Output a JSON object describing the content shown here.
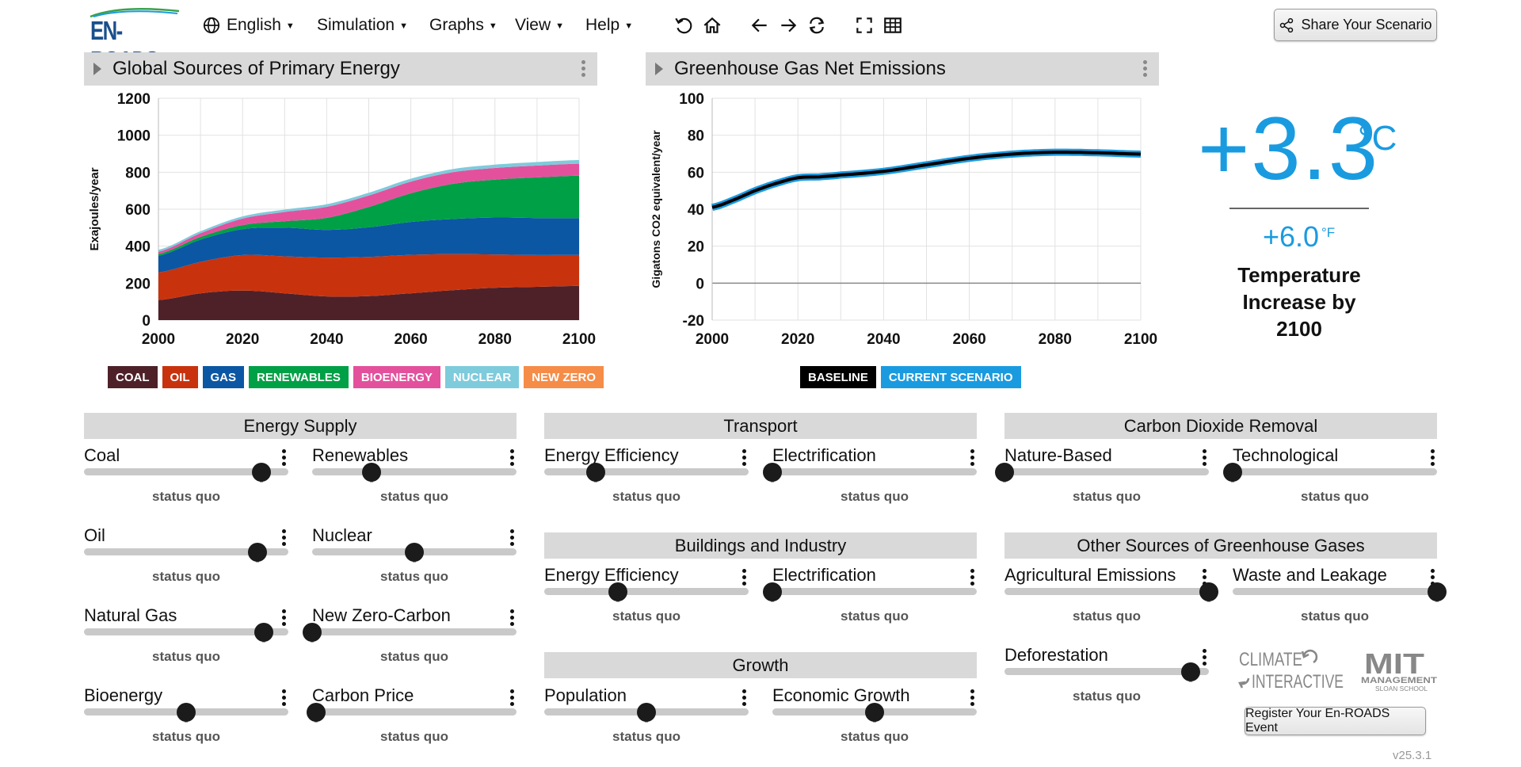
{
  "app": {
    "logo_text": "EN-ROADS",
    "version": "v25.3.1"
  },
  "menus": {
    "language": "English",
    "simulation": "Simulation",
    "graphs": "Graphs",
    "view": "View",
    "help": "Help"
  },
  "toolbar": {
    "icons": [
      "undo-icon",
      "home-icon",
      "back-arrow-icon",
      "forward-arrow-icon",
      "swap-icon",
      "fullscreen-icon",
      "table-icon"
    ],
    "share_label": "Share Your Scenario"
  },
  "graphs": {
    "left": {
      "title": "Global Sources of Primary Energy",
      "ylabel": "Exajoules/year",
      "legend": [
        {
          "label": "COAL",
          "color": "#4e2129"
        },
        {
          "label": "OIL",
          "color": "#c8330e"
        },
        {
          "label": "GAS",
          "color": "#0b57a4"
        },
        {
          "label": "RENEWABLES",
          "color": "#00a046"
        },
        {
          "label": "BIOENERGY",
          "color": "#e3519d"
        },
        {
          "label": "NUCLEAR",
          "color": "#7ecbdc"
        },
        {
          "label": "NEW ZERO",
          "color": "#f58c48"
        }
      ]
    },
    "right": {
      "title": "Greenhouse Gas Net Emissions",
      "ylabel": "Gigatons CO2 equivalent/year",
      "legend": [
        {
          "label": "BASELINE",
          "color": "#000000"
        },
        {
          "label": "CURRENT SCENARIO",
          "color": "#1a9be0"
        }
      ]
    }
  },
  "chart_data": [
    {
      "type": "area",
      "title": "Global Sources of Primary Energy",
      "ylabel": "Exajoules/year",
      "xlabel": "",
      "x": [
        2000,
        2010,
        2020,
        2030,
        2040,
        2050,
        2060,
        2070,
        2080,
        2090,
        2100
      ],
      "xlim": [
        2000,
        2100
      ],
      "ylim": [
        0,
        1200
      ],
      "yticks": [
        0,
        200,
        400,
        600,
        800,
        1000,
        1200
      ],
      "xticks": [
        2000,
        2020,
        2040,
        2060,
        2080,
        2100
      ],
      "stacked": true,
      "grid": true,
      "series": [
        {
          "name": "COAL",
          "color": "#4e2129",
          "values": [
            108,
            145,
            160,
            145,
            128,
            130,
            145,
            162,
            175,
            180,
            185
          ]
        },
        {
          "name": "OIL",
          "color": "#c8330e",
          "values": [
            150,
            170,
            192,
            200,
            210,
            212,
            208,
            195,
            180,
            172,
            168
          ]
        },
        {
          "name": "GAS",
          "color": "#0b57a4",
          "values": [
            90,
            120,
            140,
            155,
            150,
            160,
            178,
            190,
            200,
            200,
            198
          ]
        },
        {
          "name": "RENEWABLES",
          "color": "#00a046",
          "values": [
            10,
            15,
            22,
            35,
            65,
            110,
            155,
            190,
            205,
            220,
            230
          ]
        },
        {
          "name": "BIOENERGY",
          "color": "#e3519d",
          "values": [
            12,
            20,
            35,
            50,
            60,
            62,
            63,
            63,
            63,
            64,
            65
          ]
        },
        {
          "name": "NUCLEAR",
          "color": "#7ecbdc",
          "values": [
            10,
            11,
            12,
            13,
            14,
            15,
            16,
            17,
            18,
            19,
            20
          ]
        },
        {
          "name": "NEW ZERO",
          "color": "#f58c48",
          "values": [
            0,
            0,
            0,
            0,
            0,
            0,
            0,
            0,
            0,
            0,
            0
          ]
        }
      ]
    },
    {
      "type": "line",
      "title": "Greenhouse Gas Net Emissions",
      "ylabel": "Gigatons CO2 equivalent/year",
      "xlabel": "",
      "x": [
        2000,
        2005,
        2010,
        2015,
        2020,
        2025,
        2030,
        2040,
        2050,
        2060,
        2070,
        2080,
        2090,
        2100
      ],
      "xlim": [
        2000,
        2100
      ],
      "ylim": [
        -20,
        100
      ],
      "yticks": [
        -20,
        0,
        20,
        40,
        60,
        80,
        100
      ],
      "xticks": [
        2000,
        2020,
        2040,
        2060,
        2080,
        2100
      ],
      "grid": true,
      "series": [
        {
          "name": "BASELINE",
          "color": "#000000",
          "values": [
            41,
            45,
            50,
            54,
            57,
            57.5,
            58.5,
            60.5,
            64,
            67.5,
            69.8,
            70.8,
            70.5,
            69.8
          ]
        },
        {
          "name": "CURRENT SCENARIO",
          "color": "#1a9be0",
          "values": [
            41,
            45,
            50,
            54,
            57,
            57.5,
            58.5,
            60.5,
            64,
            67.5,
            69.8,
            70.8,
            70.5,
            69.8
          ]
        }
      ]
    }
  ],
  "temperature": {
    "celsius": "+3.3",
    "celsius_unit": "°C",
    "fahrenheit": "+6.0",
    "fahrenheit_unit": "°F",
    "label_line1": "Temperature",
    "label_line2": "Increase by",
    "label_line3": "2100"
  },
  "sections": {
    "energy_supply": "Energy Supply",
    "transport": "Transport",
    "cdr": "Carbon Dioxide Removal",
    "buildings": "Buildings and Industry",
    "other_ghg": "Other Sources of Greenhouse Gases",
    "growth": "Growth"
  },
  "sliders": [
    {
      "id": "coal",
      "label": "Coal",
      "value": 0.87,
      "status": "status quo"
    },
    {
      "id": "renewables",
      "label": "Renewables",
      "value": 0.29,
      "status": "status quo"
    },
    {
      "id": "oil",
      "label": "Oil",
      "value": 0.85,
      "status": "status quo"
    },
    {
      "id": "nuclear",
      "label": "Nuclear",
      "value": 0.5,
      "status": "status quo"
    },
    {
      "id": "natural-gas",
      "label": "Natural Gas",
      "value": 0.88,
      "status": "status quo"
    },
    {
      "id": "new-zero-carbon",
      "label": "New Zero-Carbon",
      "value": 0.0,
      "status": "status quo"
    },
    {
      "id": "bioenergy",
      "label": "Bioenergy",
      "value": 0.5,
      "status": "status quo"
    },
    {
      "id": "carbon-price",
      "label": "Carbon Price",
      "value": 0.02,
      "status": "status quo"
    },
    {
      "id": "transport-efficiency",
      "label": "Energy Efficiency",
      "value": 0.25,
      "status": "status quo"
    },
    {
      "id": "transport-electrification",
      "label": "Electrification",
      "value": 0.0,
      "status": "status quo"
    },
    {
      "id": "buildings-efficiency",
      "label": "Energy Efficiency",
      "value": 0.36,
      "status": "status quo"
    },
    {
      "id": "buildings-electrification",
      "label": "Electrification",
      "value": 0.0,
      "status": "status quo"
    },
    {
      "id": "population",
      "label": "Population",
      "value": 0.5,
      "status": "status quo"
    },
    {
      "id": "economic-growth",
      "label": "Economic Growth",
      "value": 0.5,
      "status": "status quo"
    },
    {
      "id": "nature-based",
      "label": "Nature-Based",
      "value": 0.0,
      "status": "status quo"
    },
    {
      "id": "technological",
      "label": "Technological",
      "value": 0.0,
      "status": "status quo"
    },
    {
      "id": "agricultural-emissions",
      "label": "Agricultural Emissions",
      "value": 1.0,
      "status": "status quo"
    },
    {
      "id": "waste-leakage",
      "label": "Waste and Leakage",
      "value": 1.0,
      "status": "status quo"
    },
    {
      "id": "deforestation",
      "label": "Deforestation",
      "value": 0.91,
      "status": "status quo"
    }
  ],
  "footer": {
    "ci_logo_line1": "CLIMATE",
    "ci_logo_line2": "INTERACTIVE",
    "mit_logo_line1": "MIT",
    "mit_logo_line2": "MANAGEMENT",
    "mit_logo_line3": "SLOAN SCHOOL",
    "register_label": "Register Your En-ROADS Event"
  }
}
